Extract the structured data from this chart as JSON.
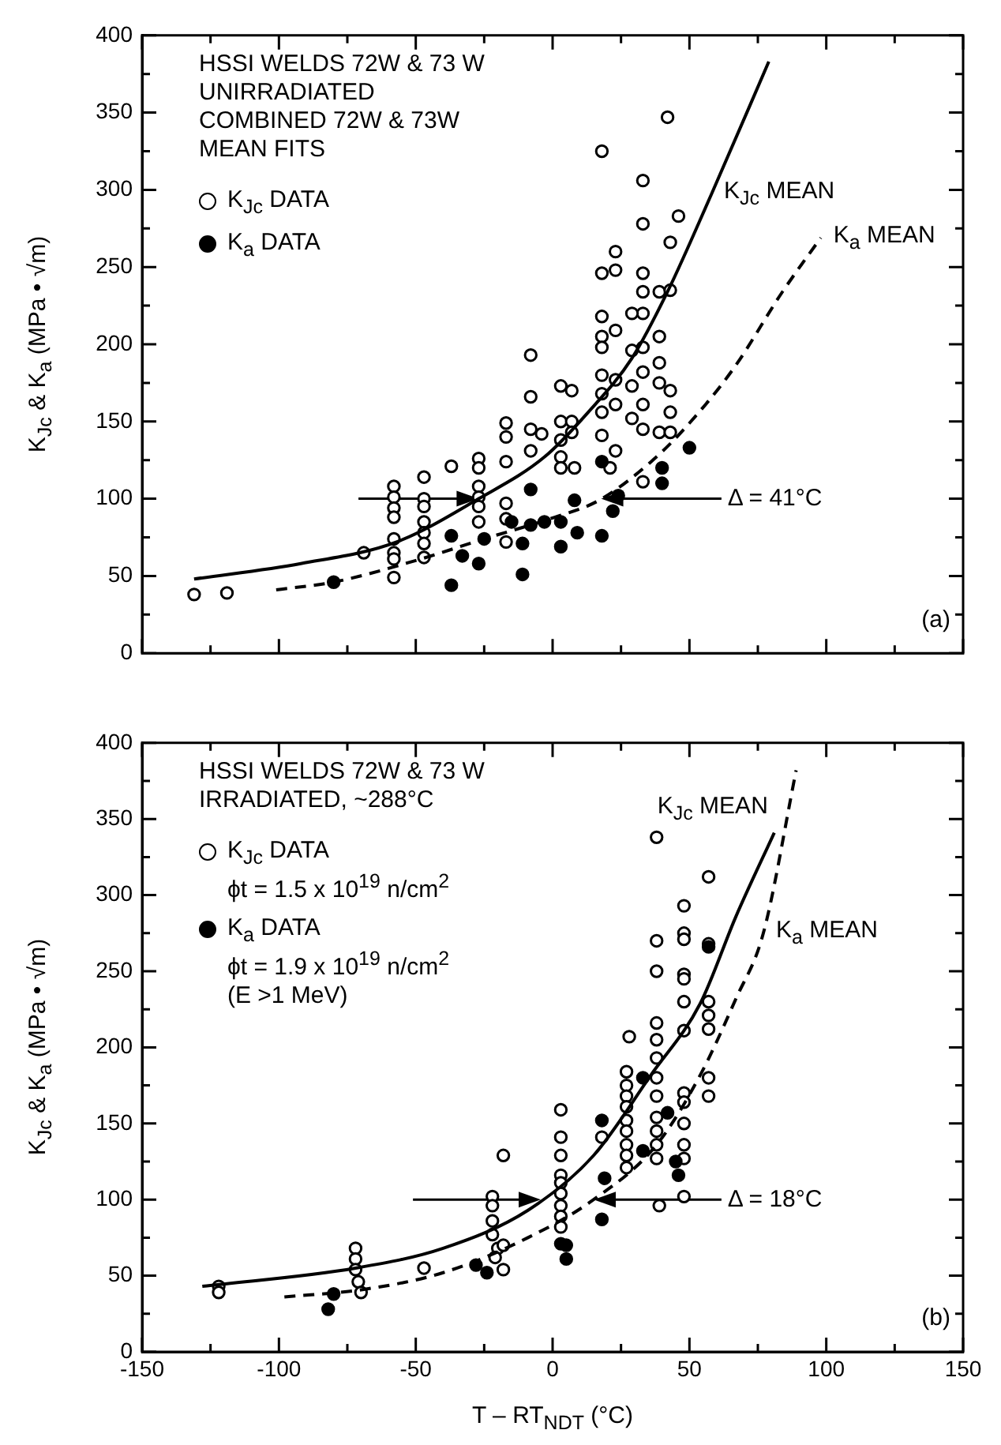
{
  "chart_data": [
    {
      "type": "scatter",
      "title": "HSSI WELDS 72W & 73 W\nUNIRRADIATED\nCOMBINED 72W & 73W\nMEAN FITS",
      "ylabel": "K$_{Jc}$ & K$_{a}$ (MPa • √m)",
      "xlim": [
        -150,
        150
      ],
      "ylim": [
        0,
        400
      ],
      "xticks": [
        -150,
        {
          "value": -125,
          "label": null
        },
        -100,
        {
          "value": -75,
          "label": null
        },
        -50,
        {
          "value": -25,
          "label": null
        },
        0,
        {
          "value": 25,
          "label": null
        },
        50,
        {
          "value": 75,
          "label": null
        },
        100,
        {
          "value": 125,
          "label": null
        },
        150
      ],
      "yticks": [
        0,
        {
          "value": 25,
          "label": null
        },
        50,
        {
          "value": 75,
          "label": null
        },
        100,
        {
          "value": 125,
          "label": null
        },
        150,
        {
          "value": 175,
          "label": null
        },
        200,
        {
          "value": 225,
          "label": null
        },
        250,
        {
          "value": 275,
          "label": null
        },
        300,
        {
          "value": 325,
          "label": null
        },
        350,
        {
          "value": 375,
          "label": null
        },
        400
      ],
      "tick_labels": "y",
      "legend": "top left",
      "series": [
        {
          "name": "K$_{Jc}$ DATA",
          "marker": "circle",
          "color": "#ffffff",
          "x": [
            -131,
            -119,
            -69,
            -58,
            -58,
            -58,
            -58,
            -58,
            -58,
            -58,
            -58,
            -47,
            -47,
            -47,
            -47,
            -47,
            -47,
            -47,
            -37,
            -27,
            -27,
            -27,
            -27,
            -27,
            -27,
            -17,
            -17,
            -17,
            -17,
            -17,
            -17,
            -8,
            -8,
            -8,
            -8,
            -4,
            3,
            3,
            3,
            3,
            3,
            7,
            7,
            7,
            8,
            18,
            18,
            18,
            18,
            18,
            18,
            18,
            18,
            18,
            23,
            23,
            23,
            23,
            23,
            23,
            21,
            33,
            33,
            33,
            33,
            33,
            29,
            33,
            29,
            33,
            29,
            33,
            29,
            33,
            33,
            42,
            46,
            43,
            39,
            43,
            39,
            39,
            39,
            43,
            43,
            39,
            43
          ],
          "values": [
            38,
            39,
            65,
            49,
            108,
            101,
            94,
            88,
            74,
            65,
            61,
            114,
            100,
            95,
            85,
            78,
            71,
            62,
            121,
            126,
            120,
            108,
            101,
            95,
            85,
            149,
            140,
            124,
            97,
            87,
            72,
            193,
            166,
            145,
            131,
            142,
            173,
            150,
            138,
            127,
            120,
            170,
            150,
            143,
            120,
            325,
            246,
            218,
            205,
            198,
            180,
            168,
            156,
            141,
            260,
            248,
            209,
            177,
            161,
            131,
            120,
            306,
            278,
            246,
            234,
            220,
            220,
            198,
            196,
            182,
            173,
            161,
            152,
            145,
            111,
            347,
            283,
            266,
            234,
            235,
            205,
            188,
            175,
            170,
            156,
            143,
            143
          ]
        },
        {
          "name": "K$_{a}$ DATA",
          "marker": "circle",
          "color": "#000000",
          "x": [
            -80,
            -37,
            -37,
            -27,
            -25,
            -33,
            -15,
            -11,
            -11,
            -8,
            -8,
            -3,
            3,
            3,
            8,
            9,
            18,
            18,
            22,
            24,
            40,
            40,
            50
          ],
          "values": [
            46,
            76,
            44,
            58,
            74,
            63,
            85,
            71,
            51,
            106,
            83,
            85,
            85,
            69,
            99,
            78,
            76,
            124,
            92,
            102,
            120,
            110,
            133
          ]
        },
        {
          "name": "K$_{Jc}$ MEAN",
          "type": "line",
          "line_style": "solid",
          "color": "#000000",
          "x": [
            -131,
            -92,
            -57,
            -27,
            -3,
            13,
            29,
            42,
            58,
            79
          ],
          "values": [
            48,
            58,
            72,
            100,
            127,
            156,
            191,
            234,
            297,
            383
          ]
        },
        {
          "name": "K$_{a}$ MEAN",
          "type": "line",
          "line_style": "dashed",
          "color": "#000000",
          "x": [
            -101,
            -80,
            -50,
            -25,
            -1,
            17,
            36,
            48,
            66,
            84,
            98
          ],
          "values": [
            41,
            46,
            60,
            74,
            87,
            99,
            124,
            145,
            184,
            234,
            269
          ]
        }
      ],
      "ref_lines": [
        {
          "axis": "y",
          "value": 100
        }
      ],
      "annotations": [
        {
          "text": "Δ = 41°C",
          "x": 64,
          "y": 100
        },
        "(a)"
      ]
    },
    {
      "type": "scatter",
      "title": "HSSI WELDS 72W & 73 W\nIRRADIATED, ~288°C",
      "ylabel": "K$_{Jc}$ & K$_{a}$ (MPa • √m)",
      "xlabel": "T – RT$_{NDT}$ (°C)",
      "xlim": [
        -150,
        150
      ],
      "ylim": [
        0,
        400
      ],
      "xticks": [
        -150,
        {
          "value": -125,
          "label": null
        },
        -100,
        {
          "value": -75,
          "label": null
        },
        -50,
        {
          "value": -25,
          "label": null
        },
        0,
        {
          "value": 25,
          "label": null
        },
        50,
        {
          "value": 75,
          "label": null
        },
        100,
        {
          "value": 125,
          "label": null
        },
        150
      ],
      "yticks": [
        0,
        {
          "value": 25,
          "label": null
        },
        50,
        {
          "value": 75,
          "label": null
        },
        100,
        {
          "value": 125,
          "label": null
        },
        150,
        {
          "value": 175,
          "label": null
        },
        200,
        {
          "value": 225,
          "label": null
        },
        250,
        {
          "value": 275,
          "label": null
        },
        300,
        {
          "value": 325,
          "label": null
        },
        350,
        {
          "value": 375,
          "label": null
        },
        400
      ],
      "legend": "top left",
      "series": [
        {
          "name": "K$_{Jc}$ DATA\nϕt =  1.5  x 10$^{19}$ n/cm$^{2}$",
          "marker": "circle",
          "color": "#ffffff",
          "x": [
            -122,
            -122,
            -72,
            -72,
            -72,
            -71,
            -70,
            -47,
            -22,
            -22,
            -18,
            -22,
            -22,
            -20,
            -18,
            -18,
            -21,
            3,
            3,
            3,
            3,
            3,
            3,
            3,
            3,
            3,
            18,
            28,
            27,
            27,
            27,
            27,
            27,
            27,
            27,
            27,
            27,
            38,
            38,
            38,
            38,
            38,
            38,
            38,
            38,
            38,
            38,
            38,
            38,
            39,
            48,
            48,
            48,
            48,
            48,
            48,
            48,
            48,
            48,
            48,
            48,
            48,
            48,
            57,
            57,
            57,
            57,
            57,
            57,
            57
          ],
          "values": [
            43,
            39,
            68,
            61,
            54,
            46,
            39,
            55,
            102,
            96,
            129,
            86,
            77,
            68,
            70,
            54,
            62,
            159,
            141,
            129,
            116,
            111,
            104,
            96,
            89,
            82,
            141,
            207,
            184,
            175,
            168,
            161,
            152,
            145,
            136,
            129,
            121,
            338,
            270,
            250,
            216,
            205,
            193,
            180,
            168,
            154,
            145,
            136,
            127,
            96,
            293,
            275,
            271,
            248,
            245,
            230,
            211,
            170,
            164,
            150,
            136,
            127,
            102,
            312,
            268,
            230,
            221,
            212,
            180,
            168
          ]
        },
        {
          "name": "K$_{a}$ DATA\nϕt =  1.9  x 10$^{19}$ n/cm$^{2}$\n(E >1 MeV)",
          "marker": "circle",
          "color": "#000000",
          "x": [
            -82,
            -80,
            -28,
            -24,
            3,
            5,
            5,
            18,
            19,
            18,
            33,
            42,
            46,
            45,
            33,
            57
          ],
          "values": [
            28,
            38,
            57,
            52,
            71,
            61,
            70,
            152,
            114,
            87,
            180,
            157,
            116,
            125,
            132,
            266
          ]
        },
        {
          "name": "K$_{Jc}$ MEAN",
          "type": "line",
          "line_style": "solid",
          "color": "#000000",
          "x": [
            -128,
            -72,
            -40,
            -9,
            15,
            36,
            54,
            67,
            81
          ],
          "values": [
            43,
            55,
            68,
            93,
            129,
            182,
            229,
            286,
            341
          ]
        },
        {
          "name": "K$_{a}$ MEAN",
          "type": "line",
          "line_style": "dashed",
          "color": "#000000",
          "x": [
            -98,
            -69,
            -40,
            -9,
            15,
            38,
            54,
            67,
            77,
            89
          ],
          "values": [
            36,
            41,
            52,
            75,
            100,
            136,
            182,
            232,
            275,
            382
          ]
        }
      ],
      "ref_lines": [
        {
          "axis": "y",
          "value": 100
        }
      ],
      "annotations": [
        {
          "text": "Δ = 18°C",
          "x": 64,
          "y": 100
        },
        "(b)"
      ]
    }
  ]
}
